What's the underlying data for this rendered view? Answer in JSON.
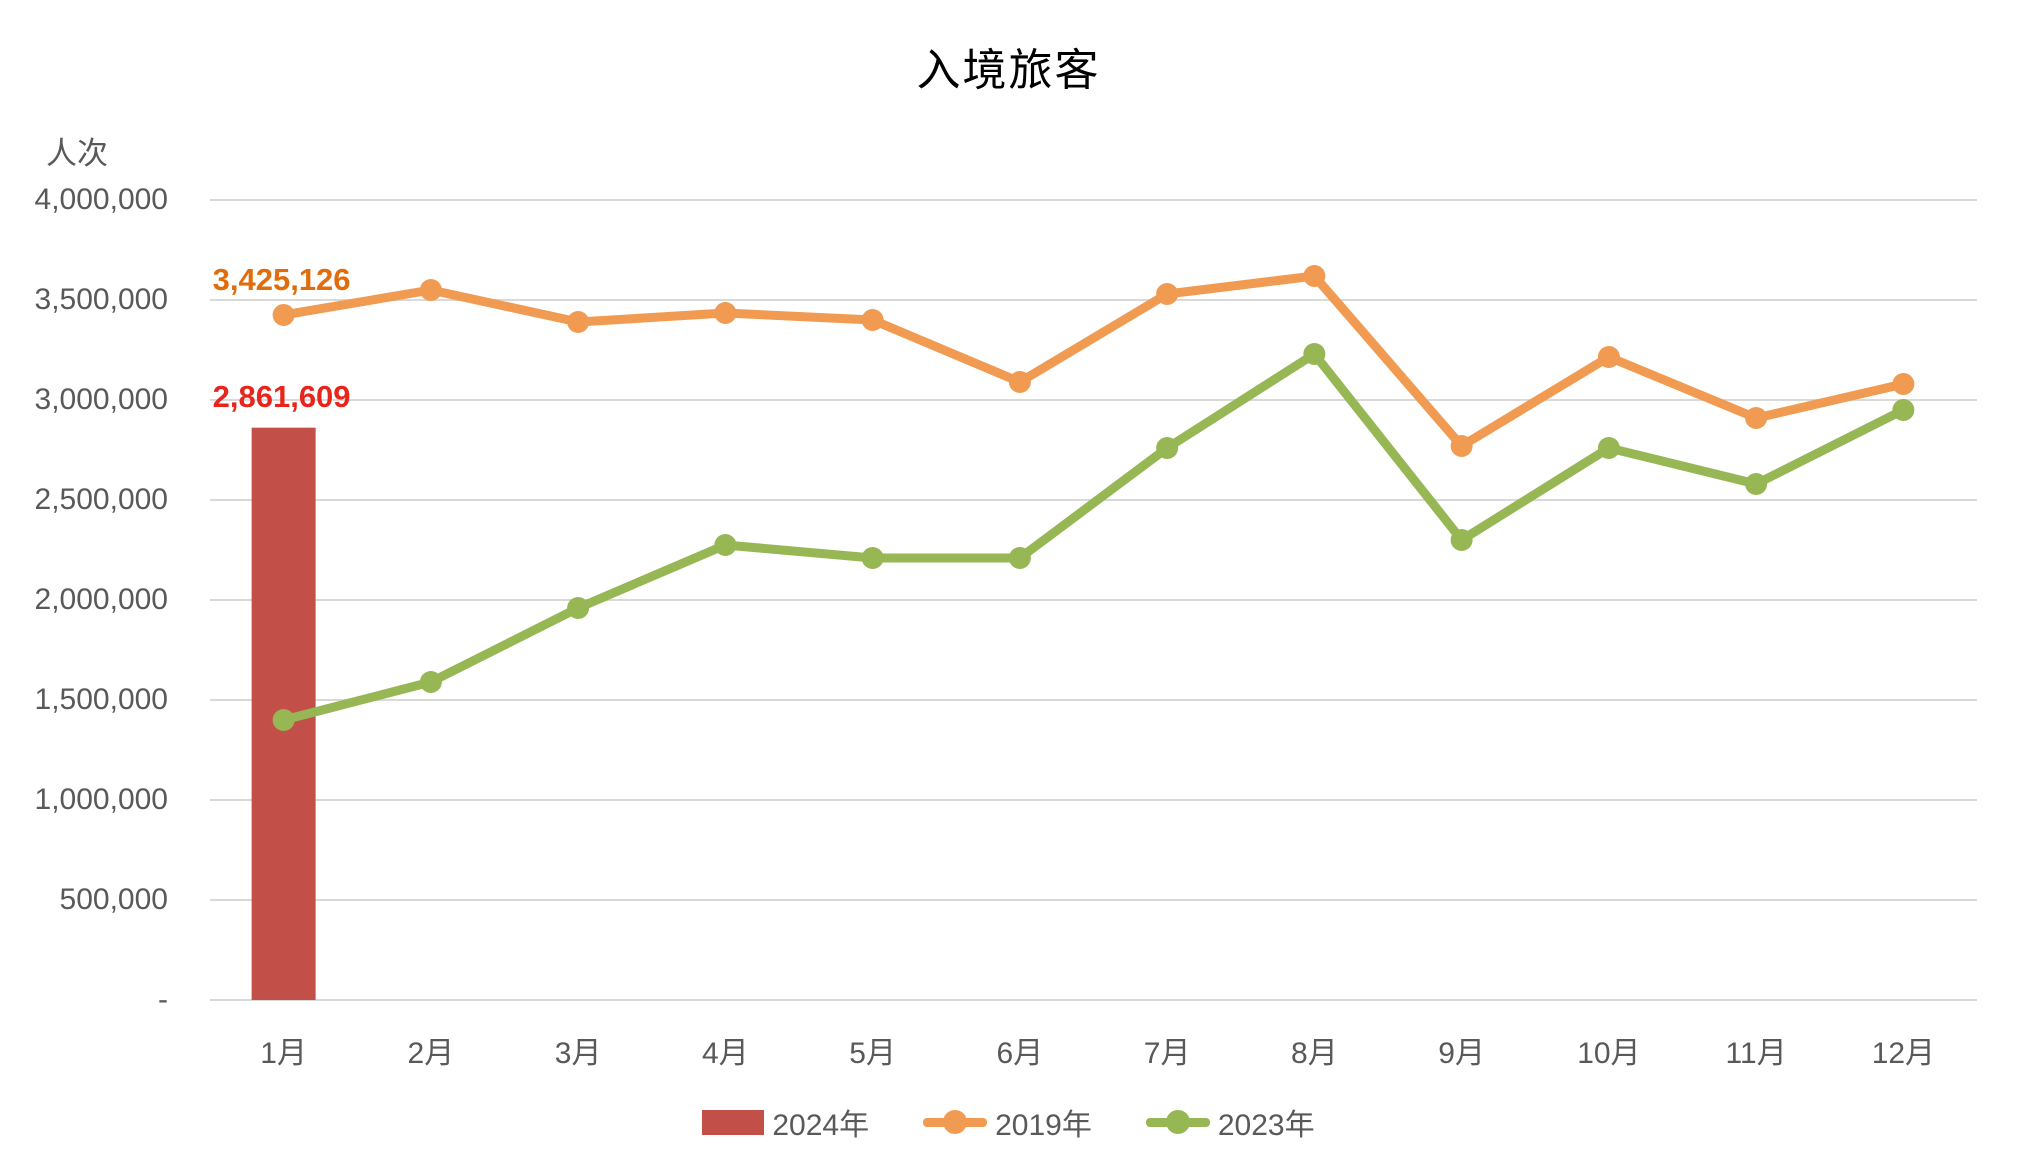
{
  "title": "入境旅客",
  "chart_data": {
    "type": "combo",
    "title": "入境旅客",
    "ylabel": "人次",
    "xlabel": "",
    "grid": true,
    "legend_position": "bottom",
    "categories": [
      "1月",
      "2月",
      "3月",
      "4月",
      "5月",
      "6月",
      "7月",
      "8月",
      "9月",
      "10月",
      "11月",
      "12月"
    ],
    "series": [
      {
        "name": "2024年",
        "type": "bar",
        "color": "#c25049",
        "values": [
          2861609,
          null,
          null,
          null,
          null,
          null,
          null,
          null,
          null,
          null,
          null,
          null
        ]
      },
      {
        "name": "2019年",
        "type": "line",
        "color": "#f09b51",
        "values": [
          3425126,
          3550000,
          3390000,
          3435000,
          3400000,
          3090000,
          3530000,
          3620000,
          2770000,
          3215000,
          2910000,
          3080000
        ]
      },
      {
        "name": "2023年",
        "type": "line",
        "color": "#96b754",
        "values": [
          1400000,
          1590000,
          1960000,
          2275000,
          2210000,
          2210000,
          2760000,
          3230000,
          2300000,
          2760000,
          2580000,
          2950000
        ]
      }
    ],
    "y_axis": {
      "min": 0,
      "max": 4000000,
      "tick_interval": 500000,
      "tick_labels_bottom_up": [
        "-",
        "500,000",
        "1,000,000",
        "1,500,000",
        "2,000,000",
        "2,500,000",
        "3,000,000",
        "3,500,000",
        "4,000,000"
      ]
    },
    "data_labels": [
      {
        "text": "3,425,126",
        "series_index": 1,
        "point_index": 0,
        "color": "#e36c0a"
      },
      {
        "text": "2,861,609",
        "series_index": 0,
        "point_index": 0,
        "color": "#e8251c"
      }
    ],
    "gridline_color": "#d9d9d9",
    "axis_text_color": "#595959"
  }
}
